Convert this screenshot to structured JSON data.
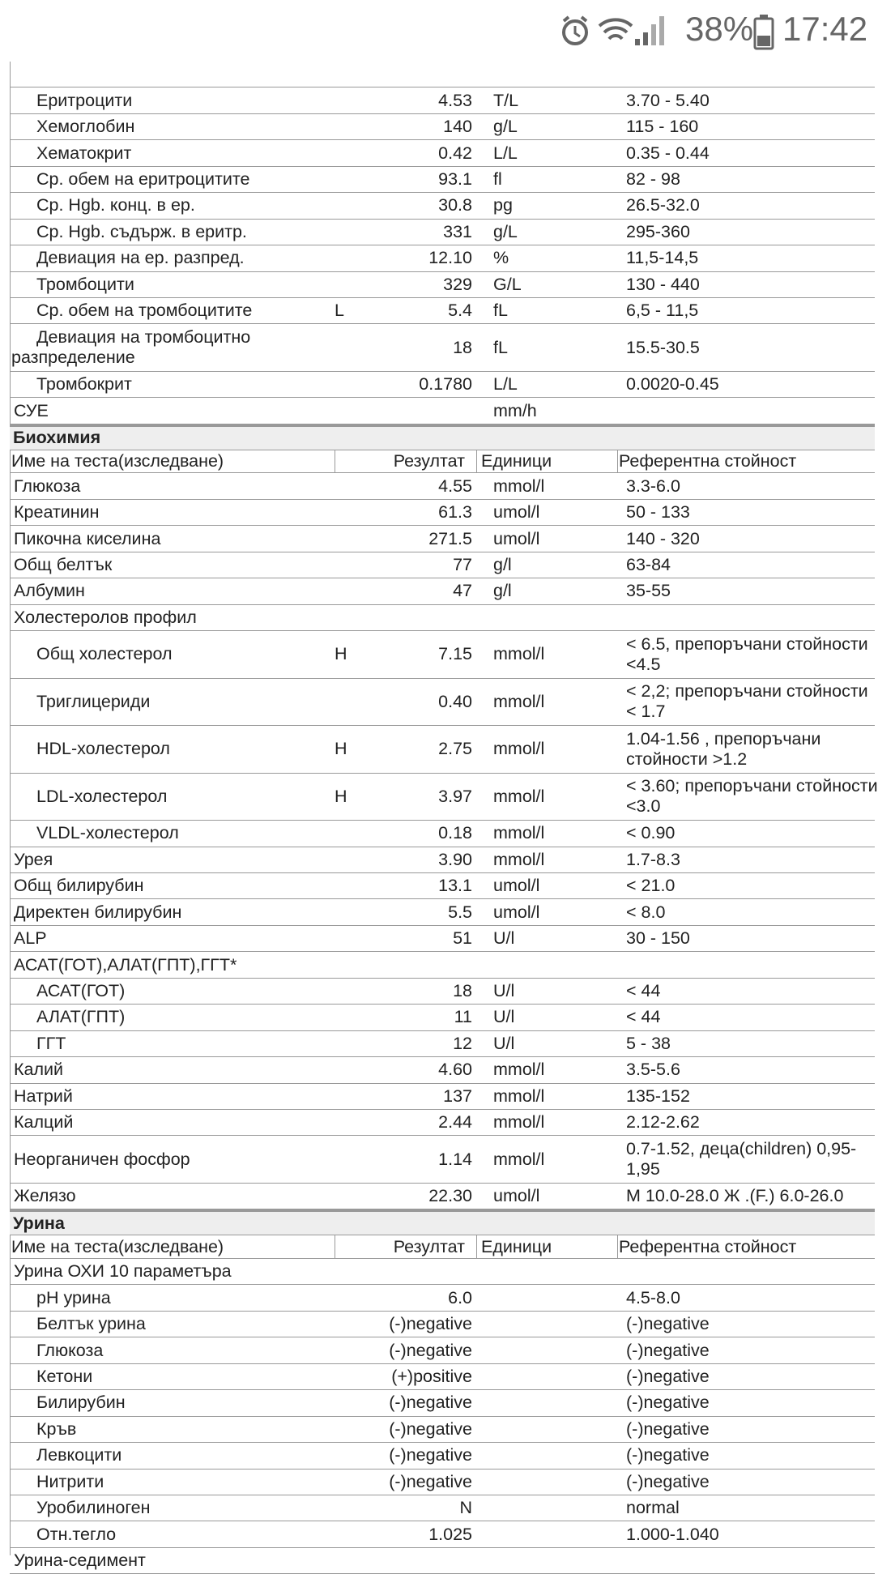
{
  "status": {
    "battery": "38%",
    "time": "17:42"
  },
  "sections": [
    {
      "rows": [
        {
          "items": [
            {
              "name": "Еритроцити",
              "result": "4.53",
              "unit": "T/L",
              "ref": "3.70 - 5.40"
            },
            {
              "name": "Хемоглобин",
              "result": "140",
              "unit": "g/L",
              "ref": "115 - 160"
            },
            {
              "name": "Хематокрит",
              "result": "0.42",
              "unit": "L/L",
              "ref": "0.35 - 0.44"
            },
            {
              "name": "Ср. обем на еритроцитите",
              "result": "93.1",
              "unit": "fl",
              "ref": "82 - 98"
            },
            {
              "name": "Ср. Hgb. конц. в ер.",
              "result": "30.8",
              "unit": "pg",
              "ref": "26.5-32.0"
            },
            {
              "name": "Ср. Hgb. съдърж. в еритр.",
              "result": "331",
              "unit": "g/L",
              "ref": "295-360"
            },
            {
              "name": "Девиация на ер. разпред.",
              "result": "12.10",
              "unit": "%",
              "ref": "11,5-14,5"
            },
            {
              "name": "Тромбоцити",
              "result": "329",
              "unit": "G/L",
              "ref": "130 - 440"
            },
            {
              "name": "Ср. обем на тромбоцитите",
              "flag": "L",
              "result": "5.4",
              "unit": "fL",
              "ref": "6,5 - 11,5"
            },
            {
              "name": [
                "Девиация на тромбоцитно",
                "разпределение"
              ],
              "result": "18",
              "unit": "fL",
              "ref": "15.5-30.5"
            },
            {
              "name": "Тромбокрит",
              "result": "0.1780",
              "unit": "L/L",
              "ref": "0.0020-0.45"
            }
          ]
        },
        {
          "name": "СУЕ",
          "unit": "mm/h"
        }
      ]
    },
    {
      "title": "Биохимия",
      "columns": [
        "Име на теста(изследване)",
        "Резултат",
        "Единици",
        "Референтна стойност"
      ],
      "rows": [
        {
          "name": "Глюкоза",
          "result": "4.55",
          "unit": "mmol/l",
          "ref": "3.3-6.0"
        },
        {
          "name": "Креатинин",
          "result": "61.3",
          "unit": "umol/l",
          "ref": "50 - 133"
        },
        {
          "name": "Пикочна киселина",
          "result": "271.5",
          "unit": "umol/l",
          "ref": "140 - 320"
        },
        {
          "name": "Общ белтък",
          "result": "77",
          "unit": "g/l",
          "ref": "63-84"
        },
        {
          "name": "Албумин",
          "result": "47",
          "unit": "g/l",
          "ref": "35-55"
        },
        {
          "name": "Холестеролов профил",
          "items": [
            {
              "name": "Общ холестерол",
              "flag": "H",
              "result": "7.15",
              "unit": "mmol/l",
              "ref": [
                "< 6.5, препоръчани стойности",
                "<4.5"
              ]
            },
            {
              "name": "Триглицериди",
              "result": "0.40",
              "unit": "mmol/l",
              "ref": [
                "< 2,2; препоръчани стойности",
                "< 1.7"
              ]
            },
            {
              "name": "HDL-холестерол",
              "flag": "H",
              "result": "2.75",
              "unit": "mmol/l",
              "ref": [
                "1.04-1.56 , препоръчани",
                "стойности >1.2"
              ]
            },
            {
              "name": "LDL-холестерол",
              "flag": "H",
              "result": "3.97",
              "unit": "mmol/l",
              "ref": [
                "< 3.60; препоръчани стойности",
                "<3.0"
              ]
            },
            {
              "name": "VLDL-холестерол",
              "result": "0.18",
              "unit": "mmol/l",
              "ref": "< 0.90"
            }
          ]
        },
        {
          "name": "Урея",
          "result": "3.90",
          "unit": "mmol/l",
          "ref": "1.7-8.3"
        },
        {
          "name": "Общ билирубин",
          "result": "13.1",
          "unit": "umol/l",
          "ref": "< 21.0"
        },
        {
          "name": "Директен билирубин",
          "result": "5.5",
          "unit": "umol/l",
          "ref": "< 8.0"
        },
        {
          "name": "ALP",
          "result": "51",
          "unit": "U/l",
          "ref": "30 - 150"
        },
        {
          "name": "АСАТ(ГОТ),АЛАТ(ГПТ),ГГТ*",
          "items": [
            {
              "name": "АСАТ(ГОТ)",
              "result": "18",
              "unit": "U/l",
              "ref": "< 44"
            },
            {
              "name": "АЛАТ(ГПТ)",
              "result": "11",
              "unit": "U/l",
              "ref": "< 44"
            },
            {
              "name": "ГГТ",
              "result": "12",
              "unit": "U/l",
              "ref": "5 - 38"
            }
          ]
        },
        {
          "name": "Калий",
          "result": "4.60",
          "unit": "mmol/l",
          "ref": "3.5-5.6"
        },
        {
          "name": "Натрий",
          "result": "137",
          "unit": "mmol/l",
          "ref": "135-152"
        },
        {
          "name": "Калций",
          "result": "2.44",
          "unit": "mmol/l",
          "ref": "2.12-2.62"
        },
        {
          "name": "Неорганичен фосфор",
          "result": "1.14",
          "unit": "mmol/l",
          "ref": [
            "0.7-1.52, деца(children) 0,95-",
            "1,95"
          ]
        },
        {
          "name": "Желязо",
          "result": "22.30",
          "unit": "umol/l",
          "ref": "М 10.0-28.0 Ж .(F.) 6.0-26.0"
        }
      ]
    },
    {
      "title": "Урина",
      "columns": [
        "Име на теста(изследване)",
        "Резултат",
        "Единици",
        "Референтна стойност"
      ],
      "rows": [
        {
          "name": "Урина ОХИ 10 параметъра",
          "items": [
            {
              "name": "pH урина",
              "result": "6.0",
              "ref": "4.5-8.0"
            },
            {
              "name": "Белтък урина",
              "result": "(-)negative",
              "ref": "(-)negative"
            },
            {
              "name": "Глюкоза",
              "result": "(-)negative",
              "ref": "(-)negative"
            },
            {
              "name": "Кетони",
              "result": "(+)positive",
              "ref": "(-)negative"
            },
            {
              "name": "Билирубин",
              "result": "(-)negative",
              "ref": "(-)negative"
            },
            {
              "name": "Кръв",
              "result": "(-)negative",
              "ref": "(-)negative"
            },
            {
              "name": "Левкоцити",
              "result": "(-)negative",
              "ref": "(-)negative"
            },
            {
              "name": "Нитрити",
              "result": "(-)negative",
              "ref": "(-)negative"
            },
            {
              "name": "Уробилиноген",
              "result": "N",
              "ref": "normal"
            },
            {
              "name": "Отн.тегло",
              "result": "1.025",
              "ref": "1.000-1.040"
            }
          ]
        },
        {
          "name": "Урина-седимент"
        }
      ]
    }
  ]
}
